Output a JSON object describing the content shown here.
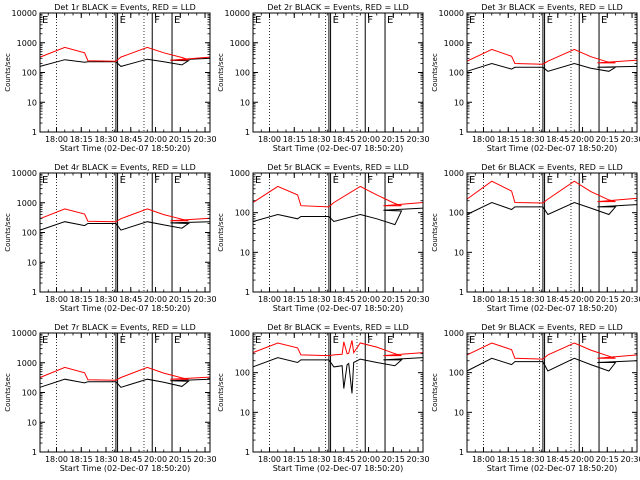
{
  "figure": {
    "xlabel_template": "Start Time (02-Dec-07 18:50:20)"
  },
  "chart_data": [
    {
      "type": "line",
      "title": "Det 1r BLACK = Events, RED = LLD",
      "xlabel": "Start Time (02-Dec-07 18:50:20)",
      "ylabel": "Counts/sec",
      "xlim": [
        "17:50",
        "20:33"
      ],
      "ylim": [
        1,
        10000
      ],
      "y_scale": "log",
      "xticks": [
        "18:00",
        "18:15",
        "18:30",
        "18:45",
        "20:00",
        "20:15",
        "20:30"
      ],
      "yticks": [
        "1",
        "10",
        "100",
        "1000",
        "10000"
      ],
      "dotted_lines": [
        "18:00",
        "18:34",
        "18:53",
        "20:10"
      ],
      "solid_lines": [
        "18:36",
        "18:37",
        "18:58",
        "20:10"
      ],
      "markers": [
        {
          "label": "E",
          "at": "17:50"
        },
        {
          "label": "E",
          "at": "18:37"
        },
        {
          "label": "F",
          "at": "18:58"
        },
        {
          "label": "E",
          "at": "20:10"
        }
      ],
      "series": [
        {
          "color": "#000000",
          "x": [
            "17:50",
            "18:05",
            "18:17",
            "18:19",
            "18:36",
            "18:39",
            "18:55",
            "19:05",
            "19:16",
            "19:20",
            "20:09",
            "20:33"
          ],
          "y": [
            160,
            270,
            220,
            230,
            230,
            160,
            280,
            230,
            180,
            250,
            260,
            300
          ]
        },
        {
          "color": "#ff0000",
          "x": [
            "17:50",
            "18:05",
            "18:17",
            "18:19",
            "18:36",
            "18:39",
            "18:55",
            "19:05",
            "19:16",
            "19:20",
            "20:09",
            "20:33"
          ],
          "y": [
            330,
            700,
            460,
            250,
            240,
            330,
            700,
            460,
            320,
            270,
            260,
            330
          ]
        }
      ]
    },
    {
      "type": "line",
      "title": "Det 2r BLACK = Events, RED = LLD",
      "xlabel": "Start Time (02-Dec-07 18:50:20)",
      "ylabel": "Counts/sec",
      "xlim": [
        "17:50",
        "20:33"
      ],
      "ylim": [
        1,
        10000
      ],
      "y_scale": "log",
      "xticks": [
        "18:00",
        "18:15",
        "18:30",
        "18:45",
        "20:00",
        "20:15",
        "20:30"
      ],
      "yticks": [
        "1",
        "10",
        "100",
        "1000",
        "10000"
      ],
      "dotted_lines": [
        "18:00",
        "18:34",
        "18:53",
        "20:10"
      ],
      "solid_lines": [
        "18:36",
        "18:37",
        "18:58",
        "20:10"
      ],
      "markers": [
        {
          "label": "E",
          "at": "17:50"
        },
        {
          "label": "E",
          "at": "18:37"
        },
        {
          "label": "F",
          "at": "18:58"
        },
        {
          "label": "E",
          "at": "20:10"
        }
      ],
      "series": []
    },
    {
      "type": "line",
      "title": "Det 3r BLACK = Events, RED = LLD",
      "xlabel": "Start Time (02-Dec-07 18:50:20)",
      "ylabel": "Counts/sec",
      "xlim": [
        "17:50",
        "20:33"
      ],
      "ylim": [
        1,
        10000
      ],
      "y_scale": "log",
      "xticks": [
        "18:00",
        "18:15",
        "18:30",
        "18:45",
        "20:00",
        "20:15",
        "20:30"
      ],
      "yticks": [
        "1",
        "10",
        "100",
        "1000",
        "10000"
      ],
      "dotted_lines": [
        "18:00",
        "18:34",
        "18:53",
        "20:10"
      ],
      "solid_lines": [
        "18:36",
        "18:37",
        "18:58",
        "20:10"
      ],
      "markers": [
        {
          "label": "E",
          "at": "17:50"
        },
        {
          "label": "E",
          "at": "18:37"
        },
        {
          "label": "F",
          "at": "18:58"
        },
        {
          "label": "E",
          "at": "20:10"
        }
      ],
      "series": [
        {
          "color": "#000000",
          "x": [
            "17:50",
            "18:05",
            "18:17",
            "18:19",
            "18:36",
            "18:39",
            "18:55",
            "19:05",
            "19:16",
            "19:20",
            "20:09",
            "20:33"
          ],
          "y": [
            110,
            200,
            130,
            150,
            150,
            110,
            200,
            140,
            110,
            150,
            150,
            160
          ]
        },
        {
          "color": "#ff0000",
          "x": [
            "17:50",
            "18:05",
            "18:17",
            "18:19",
            "18:36",
            "18:39",
            "18:55",
            "19:05",
            "19:16",
            "19:20",
            "20:09",
            "20:33"
          ],
          "y": [
            240,
            600,
            350,
            200,
            190,
            240,
            600,
            340,
            220,
            210,
            210,
            260
          ]
        }
      ]
    },
    {
      "type": "line",
      "title": "Det 4r BLACK = Events, RED = LLD",
      "xlabel": "Start Time (02-Dec-07 18:50:20)",
      "ylabel": "Counts/sec",
      "xlim": [
        "17:50",
        "20:33"
      ],
      "ylim": [
        1,
        10000
      ],
      "y_scale": "log",
      "xticks": [
        "18:00",
        "18:15",
        "18:30",
        "18:45",
        "20:00",
        "20:15",
        "20:30"
      ],
      "yticks": [
        "1",
        "10",
        "100",
        "1000",
        "10000"
      ],
      "dotted_lines": [
        "18:00",
        "18:34",
        "18:53",
        "20:10"
      ],
      "solid_lines": [
        "18:36",
        "18:37",
        "18:58",
        "20:10"
      ],
      "markers": [
        {
          "label": "E",
          "at": "17:50"
        },
        {
          "label": "E",
          "at": "18:37"
        },
        {
          "label": "F",
          "at": "18:58"
        },
        {
          "label": "E",
          "at": "20:10"
        }
      ],
      "series": [
        {
          "color": "#000000",
          "x": [
            "17:50",
            "18:05",
            "18:17",
            "18:19",
            "18:36",
            "18:39",
            "18:55",
            "19:05",
            "19:16",
            "19:20",
            "20:09",
            "20:33"
          ],
          "y": [
            120,
            230,
            170,
            200,
            200,
            120,
            230,
            180,
            140,
            200,
            210,
            230
          ]
        },
        {
          "color": "#ff0000",
          "x": [
            "17:50",
            "18:05",
            "18:17",
            "18:19",
            "18:36",
            "18:39",
            "18:55",
            "19:05",
            "19:16",
            "19:20",
            "20:09",
            "20:33"
          ],
          "y": [
            290,
            620,
            420,
            240,
            230,
            290,
            620,
            400,
            280,
            250,
            250,
            300
          ]
        }
      ]
    },
    {
      "type": "line",
      "title": "Det 5r BLACK = Events, RED = LLD",
      "xlabel": "Start Time (02-Dec-07 18:50:20)",
      "ylabel": "Counts/sec",
      "xlim": [
        "17:50",
        "20:33"
      ],
      "ylim": [
        1,
        1000
      ],
      "y_scale": "log",
      "xticks": [
        "18:00",
        "18:15",
        "18:30",
        "18:45",
        "20:00",
        "20:15",
        "20:30"
      ],
      "yticks": [
        "1",
        "10",
        "100",
        "1000"
      ],
      "dotted_lines": [
        "18:00",
        "18:34",
        "18:53",
        "20:10"
      ],
      "solid_lines": [
        "18:36",
        "18:37",
        "18:58",
        "20:10"
      ],
      "markers": [
        {
          "label": "E",
          "at": "17:50"
        },
        {
          "label": "E",
          "at": "18:37"
        },
        {
          "label": "F",
          "at": "18:58"
        },
        {
          "label": "E",
          "at": "20:10"
        }
      ],
      "series": [
        {
          "color": "#000000",
          "x": [
            "17:50",
            "18:05",
            "18:17",
            "18:19",
            "18:36",
            "18:39",
            "18:55",
            "19:05",
            "19:16",
            "19:20",
            "20:09",
            "20:33"
          ],
          "y": [
            60,
            90,
            70,
            80,
            80,
            60,
            90,
            70,
            50,
            110,
            115,
            130
          ]
        },
        {
          "color": "#ff0000",
          "x": [
            "17:50",
            "18:05",
            "18:17",
            "18:19",
            "18:36",
            "18:39",
            "18:55",
            "19:05",
            "19:16",
            "19:20",
            "20:09",
            "20:33"
          ],
          "y": [
            180,
            460,
            280,
            150,
            140,
            180,
            460,
            280,
            170,
            150,
            150,
            180
          ]
        }
      ]
    },
    {
      "type": "line",
      "title": "Det 6r BLACK = Events, RED = LLD",
      "xlabel": "Start Time (02-Dec-07 18:50:20)",
      "ylabel": "Counts/sec",
      "xlim": [
        "17:50",
        "20:33"
      ],
      "ylim": [
        1,
        1000
      ],
      "y_scale": "log",
      "xticks": [
        "18:00",
        "18:15",
        "18:30",
        "18:45",
        "20:00",
        "20:15",
        "20:30"
      ],
      "yticks": [
        "1",
        "10",
        "100",
        "1000"
      ],
      "dotted_lines": [
        "18:00",
        "18:34",
        "18:53",
        "20:10"
      ],
      "solid_lines": [
        "18:36",
        "18:37",
        "18:58",
        "20:10"
      ],
      "markers": [
        {
          "label": "E",
          "at": "17:50"
        },
        {
          "label": "E",
          "at": "18:37"
        },
        {
          "label": "F",
          "at": "18:58"
        },
        {
          "label": "E",
          "at": "20:10"
        }
      ],
      "series": [
        {
          "color": "#000000",
          "x": [
            "17:50",
            "18:05",
            "18:17",
            "18:19",
            "18:36",
            "18:39",
            "18:55",
            "19:05",
            "19:16",
            "19:20",
            "20:09",
            "20:33"
          ],
          "y": [
            90,
            180,
            120,
            140,
            140,
            90,
            180,
            130,
            90,
            140,
            140,
            160
          ]
        },
        {
          "color": "#ff0000",
          "x": [
            "17:50",
            "18:05",
            "18:17",
            "18:19",
            "18:36",
            "18:39",
            "18:55",
            "19:05",
            "19:16",
            "19:20",
            "20:09",
            "20:33"
          ],
          "y": [
            220,
            620,
            350,
            180,
            175,
            220,
            620,
            340,
            210,
            190,
            190,
            230
          ]
        }
      ]
    },
    {
      "type": "line",
      "title": "Det 7r BLACK = Events, RED = LLD",
      "xlabel": "Start Time (02-Dec-07 18:50:20)",
      "ylabel": "Counts/sec",
      "xlim": [
        "17:50",
        "20:33"
      ],
      "ylim": [
        1,
        10000
      ],
      "y_scale": "log",
      "xticks": [
        "18:00",
        "18:15",
        "18:30",
        "18:45",
        "20:00",
        "20:15",
        "20:30"
      ],
      "yticks": [
        "1",
        "10",
        "100",
        "1000",
        "10000"
      ],
      "dotted_lines": [
        "18:00",
        "18:34",
        "18:53",
        "20:10"
      ],
      "solid_lines": [
        "18:36",
        "18:37",
        "18:58",
        "20:10"
      ],
      "markers": [
        {
          "label": "E",
          "at": "17:50"
        },
        {
          "label": "E",
          "at": "18:37"
        },
        {
          "label": "F",
          "at": "18:58"
        },
        {
          "label": "E",
          "at": "20:10"
        }
      ],
      "series": [
        {
          "color": "#000000",
          "x": [
            "17:50",
            "18:05",
            "18:17",
            "18:19",
            "18:36",
            "18:39",
            "18:55",
            "19:05",
            "19:16",
            "19:20",
            "20:09",
            "20:33"
          ],
          "y": [
            150,
            280,
            210,
            230,
            230,
            150,
            280,
            220,
            160,
            240,
            250,
            280
          ]
        },
        {
          "color": "#ff0000",
          "x": [
            "17:50",
            "18:05",
            "18:17",
            "18:19",
            "18:36",
            "18:39",
            "18:55",
            "19:05",
            "19:16",
            "19:20",
            "20:09",
            "20:33"
          ],
          "y": [
            320,
            700,
            460,
            270,
            260,
            320,
            700,
            450,
            310,
            280,
            280,
            330
          ]
        }
      ]
    },
    {
      "type": "line",
      "title": "Det 8r BLACK = Events, RED = LLD",
      "xlabel": "Start Time (02-Dec-07 18:50:20)",
      "ylabel": "Counts/sec",
      "xlim": [
        "17:50",
        "20:33"
      ],
      "ylim": [
        1,
        1000
      ],
      "y_scale": "log",
      "xticks": [
        "18:00",
        "18:15",
        "18:30",
        "18:45",
        "20:00",
        "20:15",
        "20:30"
      ],
      "yticks": [
        "1",
        "10",
        "100",
        "1000"
      ],
      "dotted_lines": [
        "18:00",
        "18:34",
        "18:53",
        "20:10"
      ],
      "solid_lines": [
        "18:36",
        "18:37",
        "18:58",
        "20:10"
      ],
      "markers": [
        {
          "label": "E",
          "at": "17:50"
        },
        {
          "label": "E",
          "at": "18:37"
        },
        {
          "label": "F",
          "at": "18:58"
        },
        {
          "label": "E",
          "at": "20:10"
        }
      ],
      "series": [
        {
          "color": "#000000",
          "x": [
            "17:50",
            "18:05",
            "18:17",
            "18:19",
            "18:36",
            "18:39",
            "18:44",
            "18:45",
            "18:47",
            "18:48",
            "18:50",
            "18:51",
            "18:55",
            "19:05",
            "19:16",
            "19:20",
            "20:09",
            "20:33"
          ],
          "y": [
            140,
            240,
            180,
            210,
            210,
            140,
            150,
            40,
            160,
            170,
            30,
            180,
            220,
            180,
            150,
            210,
            210,
            240
          ]
        },
        {
          "color": "#ff0000",
          "x": [
            "17:50",
            "18:05",
            "18:17",
            "18:19",
            "18:36",
            "18:39",
            "18:44",
            "18:45",
            "18:47",
            "18:48",
            "18:50",
            "18:51",
            "18:55",
            "19:05",
            "19:16",
            "19:20",
            "20:09",
            "20:33"
          ],
          "y": [
            320,
            560,
            420,
            280,
            270,
            280,
            290,
            600,
            300,
            310,
            650,
            320,
            560,
            440,
            300,
            270,
            270,
            320
          ]
        }
      ]
    },
    {
      "type": "line",
      "title": "Det 9r BLACK = Events, RED = LLD",
      "xlabel": "Start Time (02-Dec-07 18:50:20)",
      "ylabel": "Counts/sec",
      "xlim": [
        "17:50",
        "20:33"
      ],
      "ylim": [
        1,
        1000
      ],
      "y_scale": "log",
      "xticks": [
        "18:00",
        "18:15",
        "18:30",
        "18:45",
        "20:00",
        "20:15",
        "20:30"
      ],
      "yticks": [
        "1",
        "10",
        "100",
        "1000"
      ],
      "dotted_lines": [
        "18:00",
        "18:34",
        "18:53",
        "20:10"
      ],
      "solid_lines": [
        "18:36",
        "18:37",
        "18:58",
        "20:10"
      ],
      "markers": [
        {
          "label": "E",
          "at": "17:50"
        },
        {
          "label": "E",
          "at": "18:37"
        },
        {
          "label": "F",
          "at": "18:58"
        },
        {
          "label": "E",
          "at": "20:10"
        }
      ],
      "series": [
        {
          "color": "#000000",
          "x": [
            "17:50",
            "18:05",
            "18:17",
            "18:19",
            "18:36",
            "18:39",
            "18:55",
            "19:05",
            "19:16",
            "19:20",
            "20:09",
            "20:33"
          ],
          "y": [
            110,
            230,
            160,
            190,
            190,
            110,
            230,
            160,
            110,
            180,
            180,
            200
          ]
        },
        {
          "color": "#ff0000",
          "x": [
            "17:50",
            "18:05",
            "18:17",
            "18:19",
            "18:36",
            "18:39",
            "18:55",
            "19:05",
            "19:16",
            "19:20",
            "20:09",
            "20:33"
          ],
          "y": [
            280,
            560,
            380,
            230,
            220,
            280,
            560,
            370,
            260,
            230,
            230,
            280
          ]
        }
      ]
    }
  ]
}
